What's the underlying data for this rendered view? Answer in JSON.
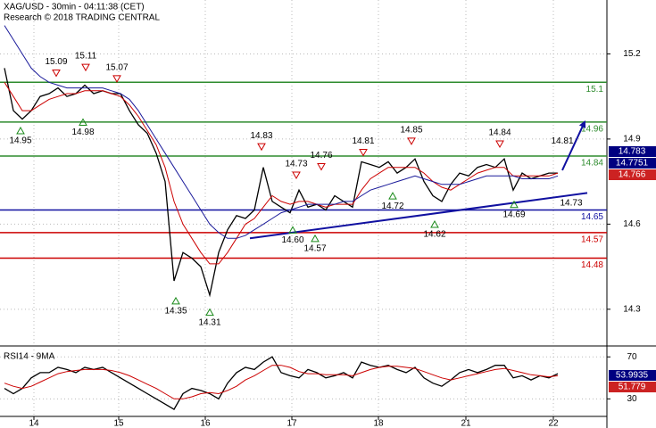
{
  "chart_data": [
    {
      "type": "line",
      "title": "XAG/USD - 30min - 04:11:38 (CET)",
      "subtitle": "Research © 2018 TRADING CENTRAL",
      "x": [
        0,
        1,
        2,
        3,
        4,
        5,
        6,
        7,
        8,
        9,
        10,
        11,
        12,
        13,
        14,
        15,
        16,
        17,
        18,
        19,
        20,
        21,
        22,
        23,
        24,
        25,
        26,
        27,
        28,
        29,
        30,
        31,
        32,
        33,
        34,
        35,
        36,
        37,
        38,
        39,
        40,
        41,
        42,
        43,
        44,
        45,
        46,
        47,
        48,
        49,
        50,
        51,
        52,
        53,
        54,
        55,
        56,
        57,
        58,
        59,
        60,
        61,
        62
      ],
      "xlim": [
        -0.5,
        67.5
      ],
      "xticks": [
        {
          "value": 3.3,
          "label": "14"
        },
        {
          "value": 12.8,
          "label": "15"
        },
        {
          "value": 22.5,
          "label": "16"
        },
        {
          "value": 32.2,
          "label": "17"
        },
        {
          "value": 41.9,
          "label": "18"
        },
        {
          "value": 51.7,
          "label": "21"
        },
        {
          "value": 61.5,
          "label": "22"
        }
      ],
      "ylim": [
        14.18,
        15.39
      ],
      "yticks": [
        15.2,
        14.9,
        14.6,
        14.3
      ],
      "grid": true,
      "series": [
        {
          "color": "#000000",
          "values": [
            15.15,
            15.0,
            14.97,
            15.0,
            15.05,
            15.06,
            15.08,
            15.05,
            15.06,
            15.09,
            15.06,
            15.07,
            15.06,
            15.06,
            15.0,
            14.95,
            14.92,
            14.85,
            14.75,
            14.4,
            14.5,
            14.48,
            14.45,
            14.35,
            14.5,
            14.58,
            14.63,
            14.62,
            14.65,
            14.8,
            14.68,
            14.66,
            14.64,
            14.72,
            14.66,
            14.67,
            14.65,
            14.7,
            14.68,
            14.66,
            14.82,
            14.81,
            14.8,
            14.82,
            14.78,
            14.8,
            14.83,
            14.75,
            14.7,
            14.68,
            14.74,
            14.78,
            14.77,
            14.8,
            14.81,
            14.8,
            14.83,
            14.72,
            14.78,
            14.76,
            14.77,
            14.78,
            14.78
          ]
        },
        {
          "color": "#cc0000",
          "values": [
            15.1,
            15.05,
            15.0,
            15.0,
            15.02,
            15.04,
            15.05,
            15.06,
            15.06,
            15.07,
            15.07,
            15.07,
            15.06,
            15.05,
            15.02,
            14.98,
            14.93,
            14.88,
            14.8,
            14.68,
            14.6,
            14.55,
            14.5,
            14.46,
            14.46,
            14.5,
            14.55,
            14.6,
            14.62,
            14.66,
            14.7,
            14.68,
            14.67,
            14.68,
            14.68,
            14.67,
            14.66,
            14.67,
            14.67,
            14.67,
            14.72,
            14.76,
            14.78,
            14.8,
            14.8,
            14.8,
            14.8,
            14.78,
            14.75,
            14.73,
            14.72,
            14.74,
            14.76,
            14.78,
            14.79,
            14.8,
            14.8,
            14.77,
            14.77,
            14.77,
            14.77,
            14.77,
            14.78
          ]
        },
        {
          "color": "#1a1a9a",
          "values": [
            15.3,
            15.25,
            15.2,
            15.15,
            15.12,
            15.1,
            15.09,
            15.08,
            15.08,
            15.08,
            15.08,
            15.08,
            15.07,
            15.06,
            15.04,
            15.0,
            14.95,
            14.9,
            14.85,
            14.8,
            14.75,
            14.7,
            14.65,
            14.6,
            14.57,
            14.55,
            14.55,
            14.56,
            14.58,
            14.6,
            14.62,
            14.64,
            14.65,
            14.66,
            14.67,
            14.67,
            14.67,
            14.67,
            14.68,
            14.68,
            14.7,
            14.72,
            14.73,
            14.74,
            14.75,
            14.76,
            14.77,
            14.76,
            14.75,
            14.74,
            14.74,
            14.74,
            14.75,
            14.76,
            14.77,
            14.77,
            14.77,
            14.77,
            14.76,
            14.76,
            14.76,
            14.76,
            14.77
          ]
        }
      ],
      "levels": [
        {
          "value": 15.1,
          "label": "15.1",
          "color": "#2e8b2e"
        },
        {
          "value": 14.96,
          "label": "14.96",
          "color": "#2e8b2e"
        },
        {
          "value": 14.84,
          "label": "14.84",
          "color": "#2e8b2e"
        },
        {
          "value": 14.65,
          "label": "14.65",
          "color": "#1010a0"
        },
        {
          "value": 14.57,
          "label": "14.57",
          "color": "#cc0000"
        },
        {
          "value": 14.48,
          "label": "14.48",
          "color": "#cc0000"
        }
      ],
      "annotations": [
        {
          "x": 5.8,
          "value": 15.09,
          "label": "15.09",
          "kind": "high",
          "marker": true
        },
        {
          "x": 9.1,
          "value": 15.11,
          "label": "15.11",
          "kind": "high",
          "marker": true
        },
        {
          "x": 12.6,
          "value": 15.07,
          "label": "15.07",
          "kind": "high",
          "marker": true
        },
        {
          "x": 28.8,
          "value": 14.83,
          "label": "14.83",
          "kind": "high",
          "marker": true
        },
        {
          "x": 32.7,
          "value": 14.73,
          "label": "14.73",
          "kind": "high",
          "marker": true
        },
        {
          "x": 35.5,
          "value": 14.76,
          "label": "14.76",
          "kind": "high",
          "marker": true
        },
        {
          "x": 40.2,
          "value": 14.81,
          "label": "14.81",
          "kind": "high",
          "marker": true
        },
        {
          "x": 45.6,
          "value": 14.85,
          "label": "14.85",
          "kind": "high",
          "marker": true
        },
        {
          "x": 55.5,
          "value": 14.84,
          "label": "14.84",
          "kind": "high",
          "marker": true
        },
        {
          "x": 62.5,
          "value": 14.81,
          "label": "14.81",
          "kind": "high",
          "marker": false
        },
        {
          "x": 1.8,
          "value": 14.95,
          "label": "14.95",
          "kind": "low",
          "marker": true
        },
        {
          "x": 8.8,
          "value": 14.98,
          "label": "14.98",
          "kind": "low",
          "marker": true
        },
        {
          "x": 19.2,
          "value": 14.35,
          "label": "14.35",
          "kind": "low",
          "marker": true
        },
        {
          "x": 23.0,
          "value": 14.31,
          "label": "14.31",
          "kind": "low",
          "marker": true
        },
        {
          "x": 32.3,
          "value": 14.6,
          "label": "14.60",
          "kind": "low",
          "marker": true
        },
        {
          "x": 34.8,
          "value": 14.57,
          "label": "14.57",
          "kind": "low",
          "marker": true
        },
        {
          "x": 43.5,
          "value": 14.72,
          "label": "14.72",
          "kind": "low",
          "marker": true
        },
        {
          "x": 48.2,
          "value": 14.62,
          "label": "14.62",
          "kind": "low",
          "marker": true
        },
        {
          "x": 57.1,
          "value": 14.69,
          "label": "14.69",
          "kind": "low",
          "marker": true
        },
        {
          "x": 63.5,
          "value": 14.73,
          "label": "14.73",
          "kind": "low",
          "marker": false
        }
      ],
      "trendline": {
        "color": "#1010a0",
        "x": [
          27.5,
          65.3
        ],
        "values": [
          14.55,
          14.71
        ]
      },
      "arrow": {
        "color": "#1010a0",
        "x": [
          62.5,
          65.0
        ],
        "values": [
          14.79,
          14.96
        ]
      },
      "price_tags": [
        {
          "value": 14.783,
          "label": "14.783",
          "color": "#000080"
        },
        {
          "value": 14.7751,
          "label": "14.7751",
          "color": "#000080"
        },
        {
          "value": 14.766,
          "label": "14.766",
          "color": "#cc2222"
        }
      ]
    },
    {
      "type": "line",
      "title": "RSI14 - 9MA",
      "x": [
        0,
        1,
        2,
        3,
        4,
        5,
        6,
        7,
        8,
        9,
        10,
        11,
        12,
        13,
        14,
        15,
        16,
        17,
        18,
        19,
        20,
        21,
        22,
        23,
        24,
        25,
        26,
        27,
        28,
        29,
        30,
        31,
        32,
        33,
        34,
        35,
        36,
        37,
        38,
        39,
        40,
        41,
        42,
        43,
        44,
        45,
        46,
        47,
        48,
        49,
        50,
        51,
        52,
        53,
        54,
        55,
        56,
        57,
        58,
        59,
        60,
        61,
        62
      ],
      "xlim": [
        -0.5,
        67.5
      ],
      "ylim": [
        15,
        77
      ],
      "yticks": [
        70,
        30
      ],
      "grid": true,
      "series": [
        {
          "color": "#000000",
          "values": [
            40,
            35,
            40,
            50,
            55,
            55,
            60,
            58,
            55,
            60,
            58,
            60,
            55,
            50,
            45,
            40,
            35,
            30,
            25,
            20,
            35,
            40,
            38,
            35,
            30,
            45,
            55,
            60,
            58,
            65,
            70,
            55,
            52,
            50,
            58,
            55,
            50,
            52,
            55,
            50,
            65,
            62,
            60,
            62,
            58,
            55,
            60,
            50,
            45,
            42,
            48,
            55,
            58,
            55,
            58,
            62,
            62,
            50,
            52,
            48,
            52,
            50,
            54
          ]
        },
        {
          "color": "#cc0000",
          "values": [
            45,
            42,
            40,
            42,
            46,
            50,
            54,
            56,
            57,
            58,
            58,
            58,
            57,
            55,
            52,
            48,
            44,
            40,
            35,
            30,
            30,
            32,
            35,
            36,
            35,
            38,
            42,
            48,
            52,
            57,
            62,
            62,
            60,
            56,
            54,
            54,
            53,
            53,
            53,
            52,
            55,
            58,
            60,
            61,
            61,
            60,
            59,
            56,
            53,
            50,
            48,
            50,
            52,
            54,
            56,
            58,
            59,
            57,
            55,
            53,
            52,
            51,
            52
          ]
        }
      ],
      "price_tags": [
        {
          "value": 53.9935,
          "label": "53.9935",
          "color": "#000080"
        },
        {
          "value": 51.779,
          "label": "51.779",
          "color": "#cc2222"
        }
      ]
    }
  ]
}
